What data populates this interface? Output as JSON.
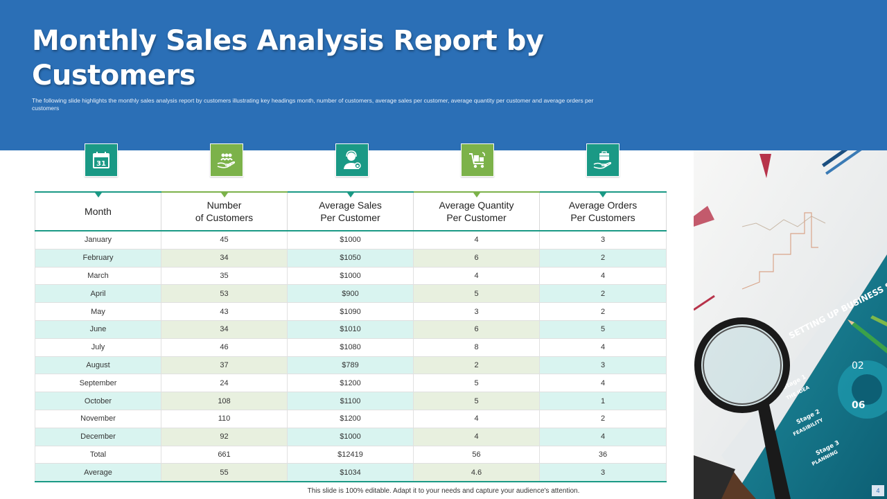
{
  "title": "Monthly Sales Analysis Report by Customers",
  "subtitle": "The following slide highlights the monthly sales analysis report by customers illustrating key headings month, number of customers, average sales per customer, average quantity per customer and average orders per customers",
  "icons": [
    "calendar-icon",
    "customers-group-icon",
    "customer-support-icon",
    "shopping-cart-icon",
    "briefcase-hand-icon"
  ],
  "colors": {
    "header": "#2b6fb6",
    "teal": "#1a9985",
    "green": "#7cb24a",
    "row_tint": "#d9f4f0"
  },
  "table": {
    "headers": [
      "Month",
      "Number of Customers",
      "Average Sales Per Customer",
      "Average Quantity Per Customer",
      "Average Orders Per Customers"
    ],
    "header_lines": [
      [
        "Month"
      ],
      [
        "Number",
        "of Customers"
      ],
      [
        "Average Sales",
        "Per Customer"
      ],
      [
        "Average Quantity",
        "Per Customer"
      ],
      [
        "Average Orders",
        "Per Customers"
      ]
    ],
    "rows": [
      [
        "January",
        "45",
        "$1000",
        "4",
        "3"
      ],
      [
        "February",
        "34",
        "$1050",
        "6",
        "2"
      ],
      [
        "March",
        "35",
        "$1000",
        "4",
        "4"
      ],
      [
        "April",
        "53",
        "$900",
        "5",
        "2"
      ],
      [
        "May",
        "43",
        "$1090",
        "3",
        "2"
      ],
      [
        "June",
        "34",
        "$1010",
        "6",
        "5"
      ],
      [
        "July",
        "46",
        "$1080",
        "8",
        "4"
      ],
      [
        "August",
        "37",
        "$789",
        "2",
        "3"
      ],
      [
        "September",
        "24",
        "$1200",
        "5",
        "4"
      ],
      [
        "October",
        "108",
        "$1100",
        "5",
        "1"
      ],
      [
        "November",
        "110",
        "$1200",
        "4",
        "2"
      ],
      [
        "December",
        "92",
        "$1000",
        "4",
        "4"
      ],
      [
        "Total",
        "661",
        "$12419",
        "56",
        "36"
      ],
      [
        "Average",
        "55",
        "$1034",
        "4.6",
        "3"
      ]
    ]
  },
  "photo": {
    "booklet_title": "SETTING UP BUSINESS ST",
    "stage1": [
      "Stage 1",
      "THE IDEA"
    ],
    "stage2": [
      "Stage 2",
      "FEASIBILITY"
    ],
    "stage3": [
      "Stage 3",
      "PLANNING"
    ],
    "num_a": "02",
    "num_b": "06"
  },
  "footer": "This slide is 100% editable. Adapt it to your needs and capture your audience's attention.",
  "page_number": "4"
}
